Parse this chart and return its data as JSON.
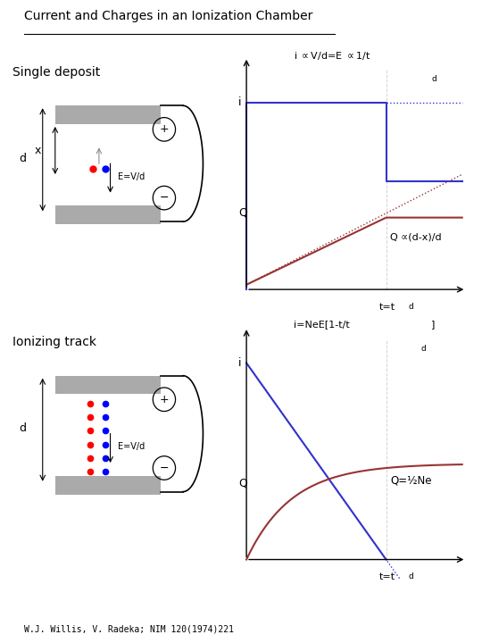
{
  "title": "Current and Charges in an Ionization Chamber",
  "citation": "W.J. Willis, V. Radeka; NIM 120(1974)221",
  "section1_label": "Single deposit",
  "section2_label": "Ionizing track",
  "Q_label1": "Q ∝(d-x)/d",
  "Q_label2": "Q=½Ne",
  "bg_color": "#ffffff",
  "blue_color": "#3333cc",
  "red_color": "#993333",
  "gray_color": "#aaaaaa",
  "axis_color": "#000000"
}
